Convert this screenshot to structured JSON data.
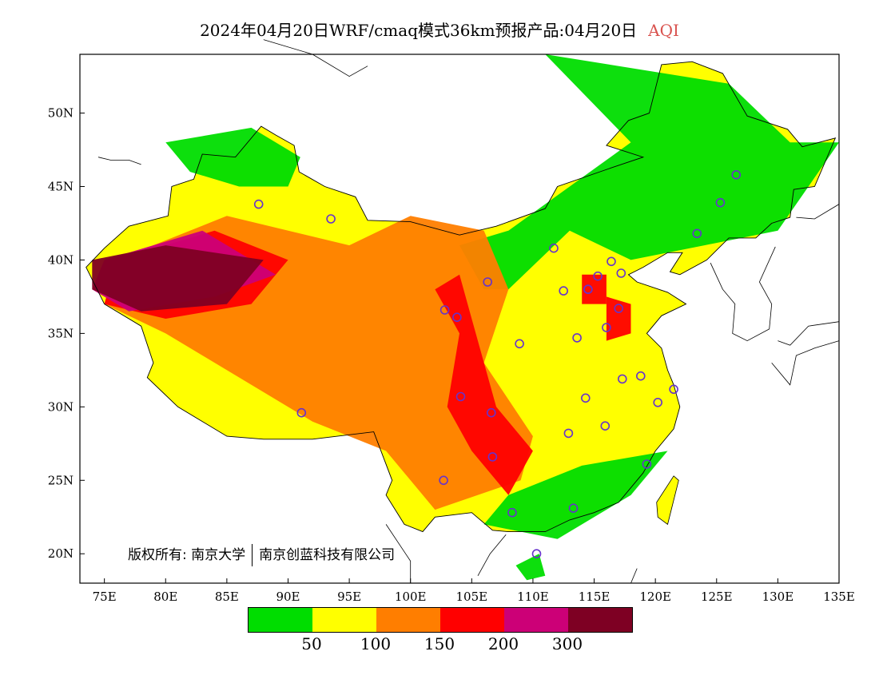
{
  "title": {
    "main": "2024年04月20日WRF/cmaq模式36km预报产品:04月20日",
    "variable": "AQI"
  },
  "map": {
    "x_axis": {
      "ticks": [
        "75E",
        "80E",
        "85E",
        "90E",
        "95E",
        "100E",
        "105E",
        "110E",
        "115E",
        "120E",
        "125E",
        "130E",
        "135E"
      ]
    },
    "y_axis": {
      "ticks": [
        "20N",
        "25N",
        "30N",
        "35N",
        "40N",
        "45N",
        "50N"
      ]
    },
    "extent": {
      "lon": [
        73,
        135
      ],
      "lat": [
        18,
        54
      ]
    },
    "regions": [
      {
        "category": "green",
        "lonlat": [
          [
            111,
            54
          ],
          [
            126,
            52
          ],
          [
            131,
            48
          ],
          [
            135,
            48
          ],
          [
            130,
            42
          ],
          [
            124,
            41
          ],
          [
            118,
            40
          ],
          [
            113,
            42
          ],
          [
            108,
            38
          ],
          [
            106,
            38
          ],
          [
            104,
            41
          ],
          [
            108,
            42
          ],
          [
            113,
            45
          ],
          [
            118,
            48
          ]
        ]
      },
      {
        "category": "green",
        "lonlat": [
          [
            80,
            48
          ],
          [
            87,
            49
          ],
          [
            91,
            47
          ],
          [
            90,
            45
          ],
          [
            86,
            45
          ],
          [
            82,
            46
          ]
        ]
      },
      {
        "category": "green",
        "lonlat": [
          [
            106,
            22
          ],
          [
            112,
            21
          ],
          [
            118,
            24
          ],
          [
            121,
            27
          ],
          [
            114,
            26
          ],
          [
            108,
            24
          ]
        ]
      },
      {
        "category": "green",
        "lonlat": [
          [
            108.6,
            19.2
          ],
          [
            110.5,
            20
          ],
          [
            111,
            18.5
          ],
          [
            109.5,
            18.2
          ]
        ]
      },
      {
        "category": "orange",
        "lonlat": [
          [
            76,
            40
          ],
          [
            85,
            43
          ],
          [
            95,
            41
          ],
          [
            100,
            43
          ],
          [
            106,
            42
          ],
          [
            108,
            38
          ],
          [
            106,
            33
          ],
          [
            110,
            28
          ],
          [
            109,
            25
          ],
          [
            102,
            23
          ],
          [
            98,
            27
          ],
          [
            92,
            29
          ],
          [
            88,
            31
          ],
          [
            80,
            35
          ],
          [
            75,
            37
          ]
        ]
      },
      {
        "category": "red",
        "lonlat": [
          [
            102,
            38
          ],
          [
            104,
            39
          ],
          [
            105,
            36
          ],
          [
            107,
            30
          ],
          [
            110,
            27
          ],
          [
            108,
            24
          ],
          [
            105,
            27
          ],
          [
            103,
            30
          ],
          [
            104,
            35
          ]
        ]
      },
      {
        "category": "red",
        "lonlat": [
          [
            76,
            40
          ],
          [
            84,
            42
          ],
          [
            90,
            40
          ],
          [
            87,
            37
          ],
          [
            80,
            36
          ],
          [
            75,
            37
          ]
        ]
      },
      {
        "category": "red",
        "lonlat": [
          [
            116,
            37.5
          ],
          [
            118,
            37
          ],
          [
            118,
            35
          ],
          [
            116,
            34.5
          ]
        ]
      },
      {
        "category": "red",
        "lonlat": [
          [
            114,
            39
          ],
          [
            116,
            39
          ],
          [
            116,
            37
          ],
          [
            114,
            37
          ]
        ]
      },
      {
        "category": "purple",
        "lonlat": [
          [
            75,
            40
          ],
          [
            83,
            42
          ],
          [
            89,
            39
          ],
          [
            84,
            37.5
          ],
          [
            77,
            36.5
          ],
          [
            74,
            38
          ]
        ]
      },
      {
        "category": "maroon",
        "lonlat": [
          [
            74,
            40
          ],
          [
            80,
            41
          ],
          [
            88,
            40
          ],
          [
            85,
            37
          ],
          [
            78,
            36.5
          ],
          [
            74,
            38
          ]
        ]
      }
    ],
    "cities": [
      [
        87.6,
        43.8
      ],
      [
        91.1,
        29.6
      ],
      [
        93.5,
        42.8
      ],
      [
        102.8,
        36.6
      ],
      [
        103.8,
        36.1
      ],
      [
        106.3,
        38.5
      ],
      [
        111.7,
        40.8
      ],
      [
        112.5,
        37.9
      ],
      [
        114.5,
        38.0
      ],
      [
        115.3,
        38.9
      ],
      [
        116.4,
        39.9
      ],
      [
        117.2,
        39.1
      ],
      [
        117.0,
        36.7
      ],
      [
        116.0,
        35.4
      ],
      [
        113.6,
        34.7
      ],
      [
        108.9,
        34.3
      ],
      [
        104.1,
        30.7
      ],
      [
        106.6,
        29.6
      ],
      [
        106.7,
        26.6
      ],
      [
        102.7,
        25.0
      ],
      [
        108.3,
        22.8
      ],
      [
        113.3,
        23.1
      ],
      [
        110.3,
        20.0
      ],
      [
        114.3,
        30.6
      ],
      [
        112.9,
        28.2
      ],
      [
        115.9,
        28.7
      ],
      [
        117.3,
        31.9
      ],
      [
        118.8,
        32.1
      ],
      [
        120.2,
        30.3
      ],
      [
        121.5,
        31.2
      ],
      [
        119.3,
        26.1
      ],
      [
        123.4,
        41.8
      ],
      [
        125.3,
        43.9
      ],
      [
        126.6,
        45.8
      ],
      [
        114.5,
        38.0
      ]
    ]
  },
  "copyright": {
    "left": "版权所有: 南京大学",
    "right": "南京创蓝科技有限公司"
  },
  "legend": {
    "labels": [
      "50",
      "100",
      "150",
      "200",
      "300"
    ],
    "colors": [
      "#00dd00",
      "#ffff00",
      "#ff7e00",
      "#ff0000",
      "#cc0077",
      "#7e0023"
    ]
  },
  "colors": {
    "green": "#00dd00",
    "yellow": "#ffff00",
    "orange": "#ff7e00",
    "red": "#ff0000",
    "purple": "#cc0077",
    "maroon": "#7e0023",
    "city_marker": "#6633cc"
  }
}
